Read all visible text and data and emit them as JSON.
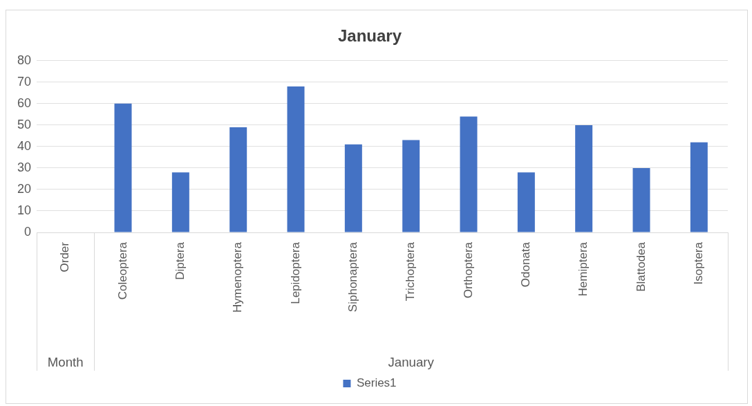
{
  "chart_data": {
    "type": "bar",
    "title": "January",
    "categories": [
      "Order",
      "Coleoptera",
      "Diptera",
      "Hymenoptera",
      "Lepidoptera",
      "Siphonaptera",
      "Trichoptera",
      "Orthoptera",
      "Odonata",
      "Hemiptera",
      "Blattodea",
      "Isoptera"
    ],
    "series": [
      {
        "name": "Series1",
        "color": "#4472c4",
        "values": [
          null,
          60,
          28,
          49,
          68,
          41,
          43,
          54,
          28,
          50,
          30,
          42
        ]
      }
    ],
    "annotations": [
      "Month",
      "January"
    ],
    "ylim": [
      0,
      80
    ],
    "yticks": [
      0,
      10,
      20,
      30,
      40,
      50,
      60,
      70,
      80
    ],
    "grid": "y",
    "legend": "bottom"
  }
}
